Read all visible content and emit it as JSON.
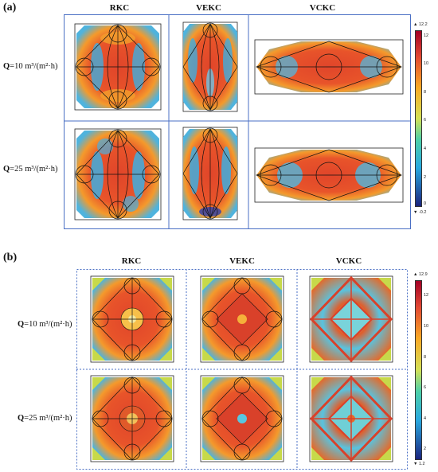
{
  "panel_a": {
    "label": "(a)",
    "columns": [
      "RKC",
      "VEKC",
      "VCKC"
    ],
    "rows": [
      {
        "q": "Q",
        "value": "=10 m³/(m²·h)"
      },
      {
        "q": "Q",
        "value": "=25 m³/(m²·h)"
      }
    ],
    "colorbar": {
      "max_label": "▲ 12.2",
      "min_label": "▼ -0.2",
      "ticks": [
        "12",
        "10",
        "8",
        "6",
        "4",
        "2",
        "0"
      ],
      "range": [
        -0.2,
        12.2
      ]
    }
  },
  "panel_b": {
    "label": "(b)",
    "columns": [
      "RKC",
      "VEKC",
      "VCKC"
    ],
    "rows": [
      {
        "q": "Q",
        "value": "=10 m³/(m²·h)"
      },
      {
        "q": "Q",
        "value": "=25 m³/(m²·h)"
      }
    ],
    "colorbar": {
      "max_label": "▲ 12.9",
      "min_label": "▼ 1.2",
      "ticks": [
        "12",
        "10",
        "8",
        "6",
        "4",
        "2"
      ],
      "range": [
        1.2,
        12.9
      ]
    }
  },
  "colors": {
    "frame_a": "#4a6fc4",
    "frame_b": "#4a6fc4",
    "hot": "#d7301f",
    "warm": "#f4a12b",
    "mid": "#c7d94a",
    "cool": "#3fb6d6",
    "cold": "#2a3fb0"
  }
}
